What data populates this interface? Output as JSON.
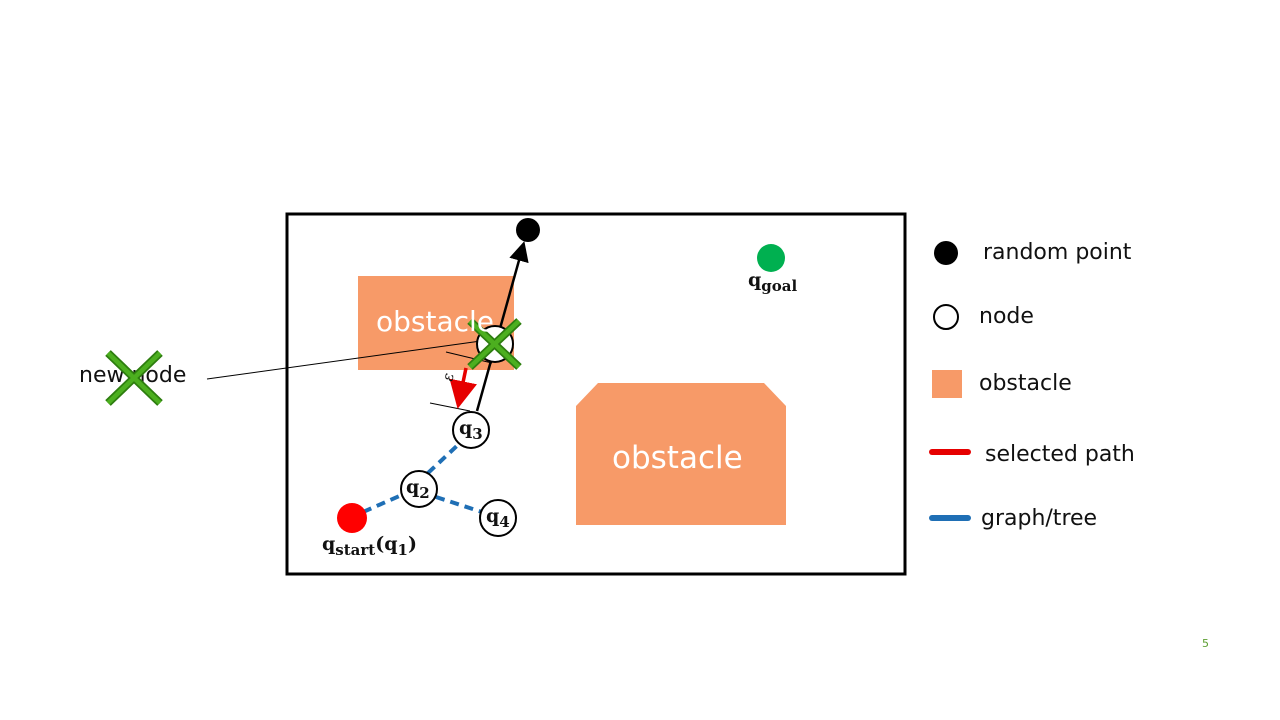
{
  "diagram": {
    "obstacle_label_1": "obstacle",
    "obstacle_label_2": "obstacle",
    "goal_label": {
      "base": "q",
      "sub": "goal"
    },
    "start_label": {
      "base": "q",
      "sub": "start",
      "paren_base": "q",
      "paren_sub": "1"
    },
    "node_labels": [
      {
        "base": "q",
        "sub": "2"
      },
      {
        "base": "q",
        "sub": "3"
      },
      {
        "base": "q",
        "sub": "4"
      }
    ],
    "epsilon_label": "ε",
    "new_node_callout": "new node"
  },
  "legend": {
    "items": [
      {
        "label": "random point",
        "icon": "filled-black-circle"
      },
      {
        "label": "node",
        "icon": "hollow-circle"
      },
      {
        "label": "obstacle",
        "icon": "orange-square"
      },
      {
        "label": "selected path",
        "icon": "red-line"
      },
      {
        "label": "graph/tree",
        "icon": "blue-line"
      }
    ]
  },
  "colors": {
    "obstacle": "#f79a68",
    "start": "#ff0000",
    "goal": "#00b050",
    "tree": "#1f6fb5",
    "selected_path": "#e60000",
    "reject_cross": "#3f9f14"
  },
  "page_number": "5"
}
